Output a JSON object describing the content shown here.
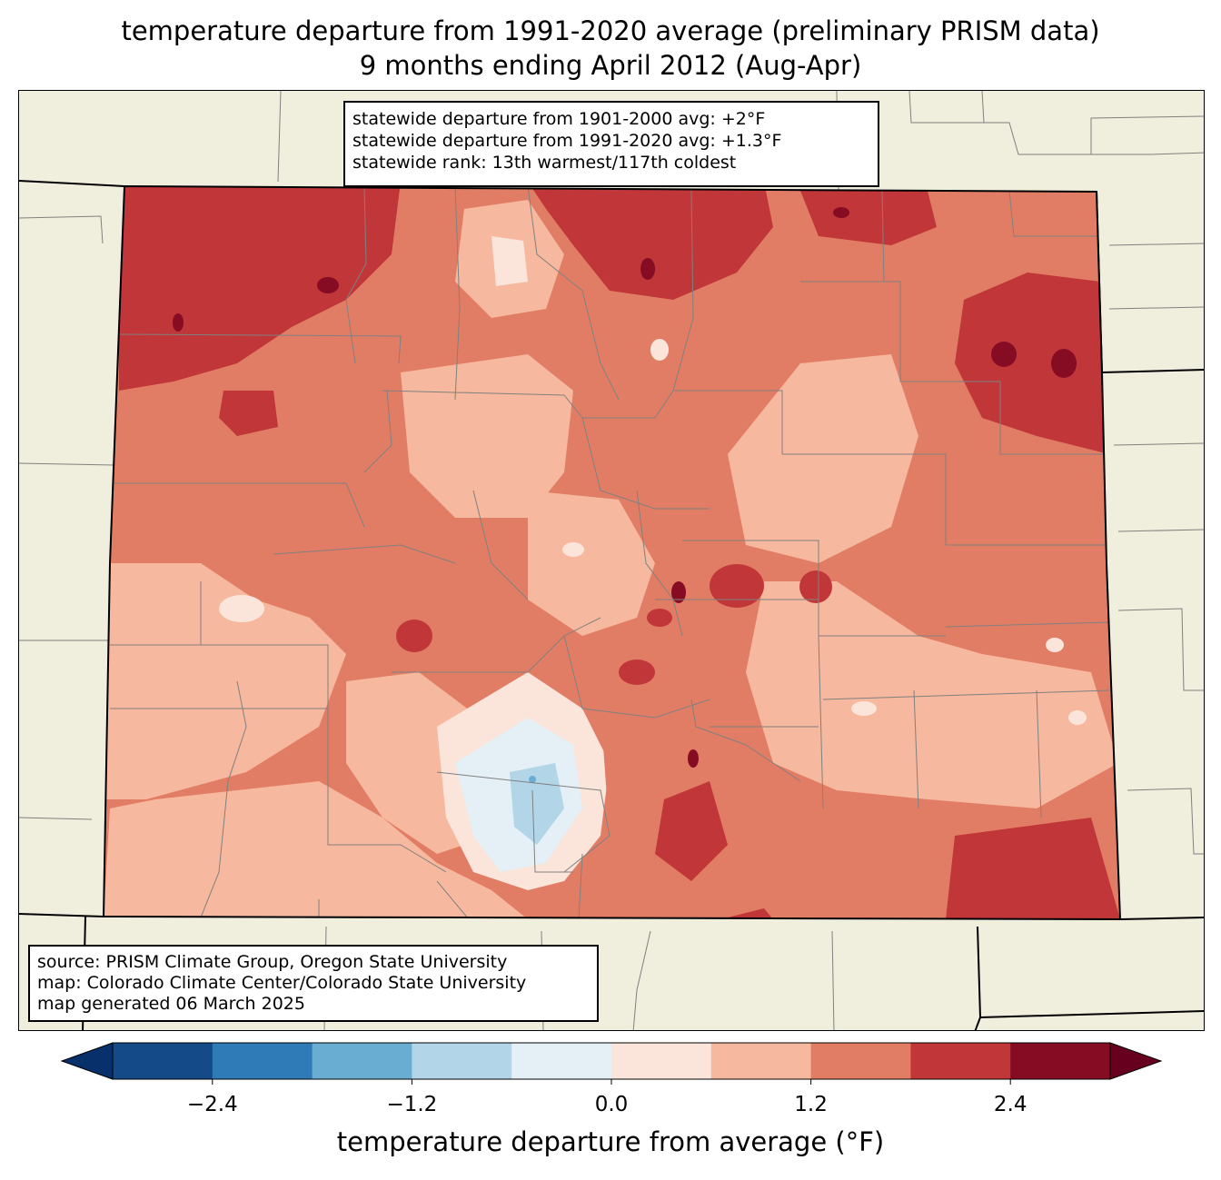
{
  "title": {
    "line1": "temperature departure from 1991-2020 average (preliminary PRISM data)",
    "line2": "9 months ending April 2012 (Aug-Apr)"
  },
  "stats": {
    "line1": "statewide departure from 1901-2000 avg: +2°F",
    "line2": "statewide departure from 1991-2020 avg: +1.3°F",
    "line3": "statewide rank: 13th warmest/117th coldest"
  },
  "source": {
    "line1": "source: PRISM Climate Group, Oregon State University",
    "line2": "map: Colorado Climate Center/Colorado State University",
    "line3": "map generated 06 March 2025"
  },
  "colorbar": {
    "label": "temperature departure from average (°F)",
    "min": -3.0,
    "max": 3.0,
    "step": 0.6,
    "ticks": [
      "−2.4",
      "−1.2",
      "0.0",
      "1.2",
      "2.4"
    ],
    "tick_values": [
      -2.4,
      -1.2,
      0.0,
      1.2,
      2.4
    ],
    "colors": [
      "#08306b",
      "#144a87",
      "#2f7bb8",
      "#6aadd3",
      "#b2d5e8",
      "#e5eff6",
      "#fbe5da",
      "#f6b89e",
      "#e27d65",
      "#c13639",
      "#860c24",
      "#67001f"
    ]
  },
  "map_colors": {
    "land": "#f0eedc",
    "county_lines": "#808080",
    "state_lines": "#000000"
  }
}
